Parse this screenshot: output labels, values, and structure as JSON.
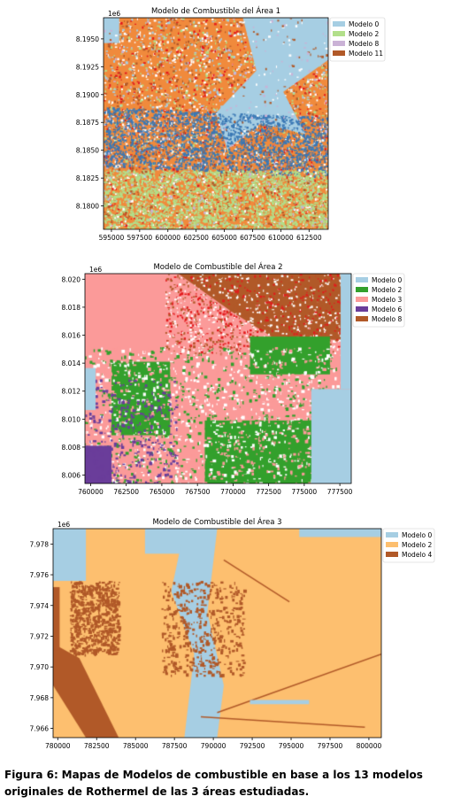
{
  "chart_data": [
    {
      "type": "heatmap",
      "title": "Modelo de Combustible del Área 1",
      "offset_label": "1e6",
      "x_ticks": [
        "595000",
        "597500",
        "600000",
        "602500",
        "605000",
        "607500",
        "610000",
        "612500"
      ],
      "y_ticks": [
        "8.1950",
        "8.1925",
        "8.1900",
        "8.1875",
        "8.1850",
        "8.1825",
        "8.1800"
      ],
      "xlim": [
        594300,
        614200
      ],
      "ylim": [
        8.1779,
        8.1969
      ],
      "legend": [
        {
          "label": "Modelo 0",
          "color": "#a6cee3"
        },
        {
          "label": "Modelo 2",
          "color": "#b2df8a"
        },
        {
          "label": "Modelo 8",
          "color": "#cab2d6"
        },
        {
          "label": "Modelo 11",
          "color": "#b15928"
        }
      ],
      "background_color": "#f08a3c",
      "legend_position": "right"
    },
    {
      "type": "heatmap",
      "title": "Modelo de Combustible del Área 2",
      "offset_label": "1e6",
      "x_ticks": [
        "760000",
        "762500",
        "765000",
        "767500",
        "770000",
        "772500",
        "775000",
        "777500"
      ],
      "y_ticks": [
        "8.020",
        "8.018",
        "8.016",
        "8.014",
        "8.012",
        "8.010",
        "8.008",
        "8.006"
      ],
      "xlim": [
        759600,
        778300
      ],
      "ylim": [
        8.0054,
        8.0204
      ],
      "legend": [
        {
          "label": "Modelo 0",
          "color": "#a6cee3"
        },
        {
          "label": "Modelo 2",
          "color": "#33a02c"
        },
        {
          "label": "Modelo 3",
          "color": "#fb9a99"
        },
        {
          "label": "Modelo 6",
          "color": "#6a3d9a"
        },
        {
          "label": "Modelo 8",
          "color": "#b15928"
        }
      ],
      "legend_position": "right"
    },
    {
      "type": "heatmap",
      "title": "Modelo de Combustible del Área 3",
      "offset_label": "1e6",
      "x_ticks": [
        "780000",
        "782500",
        "785000",
        "787500",
        "790000",
        "792500",
        "795000",
        "797500",
        "800000"
      ],
      "y_ticks": [
        "7.978",
        "7.976",
        "7.974",
        "7.972",
        "7.970",
        "7.968",
        "7.966"
      ],
      "xlim": [
        779700,
        800800
      ],
      "ylim": [
        7.9654,
        7.979
      ],
      "legend": [
        {
          "label": "Modelo 0",
          "color": "#a6cee3"
        },
        {
          "label": "Modelo 2",
          "color": "#fdbf6f"
        },
        {
          "label": "Modelo 4",
          "color": "#b15928"
        }
      ],
      "legend_position": "right"
    }
  ],
  "caption": {
    "label": "Figura 6:",
    "text": "Mapas de Modelos de combustible en base a los 13 modelos originales de Rothermel de las 3 áreas estudiadas."
  }
}
